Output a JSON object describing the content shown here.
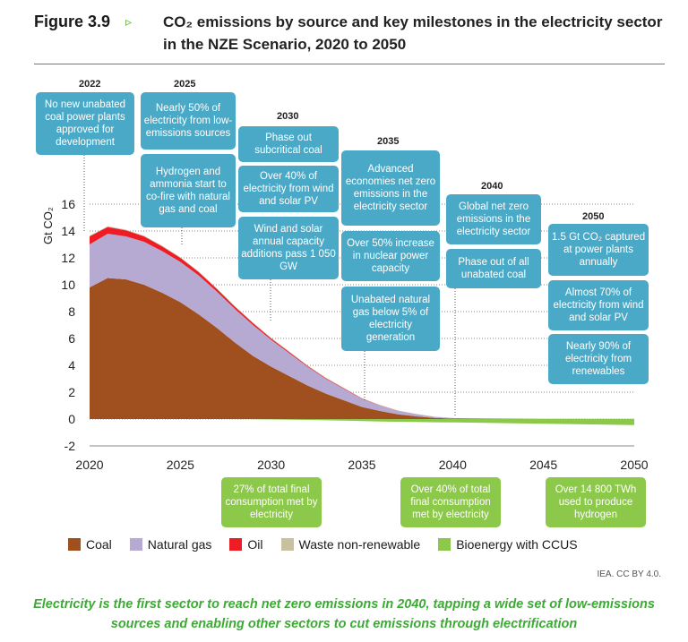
{
  "figure": {
    "label": "Figure 3.9",
    "arrow": "▹",
    "title": "CO₂ emissions by source and key milestones in the electricity sector in the NZE Scenario, 2020 to 2050"
  },
  "credit": "IEA. CC BY 4.0.",
  "caption": "Electricity is the first sector to reach net zero emissions in 2040, tapping a wide set of low-emissions sources and enabling other sectors to cut emissions through electrification",
  "milestones": {
    "y2022": {
      "year": "2022",
      "items": [
        "No new unabated coal power plants approved for development"
      ]
    },
    "y2025": {
      "year": "2025",
      "items": [
        "Nearly 50% of electricity from low-emissions sources",
        "Hydrogen and ammonia start to co-fire with natural gas and coal"
      ]
    },
    "y2030": {
      "year": "2030",
      "items": [
        "Phase out subcritical coal",
        "Over 40% of electricity from wind and solar PV",
        "Wind and solar annual capacity additions pass 1 050 GW"
      ]
    },
    "y2035": {
      "year": "2035",
      "items": [
        "Advanced economies net zero emissions in the electricity sector",
        "Over 50% increase in nuclear power capacity",
        "Unabated natural gas below 5% of electricity generation"
      ]
    },
    "y2040": {
      "year": "2040",
      "items": [
        "Global net zero emissions in the electricity sector",
        "Phase out of all unabated coal"
      ]
    },
    "y2050": {
      "year": "2050",
      "items": [
        "1.5 Gt CO₂ captured at power plants annually",
        "Almost 70% of electricity from wind and solar PV",
        "Nearly 90% of electricity from renewables"
      ]
    }
  },
  "bottom_callouts": [
    "27% of total final consumption met by electricity",
    "Over 40% of total final consumption met by electricity",
    "Over 14 800 TWh used to produce hydrogen"
  ],
  "chart_data": {
    "type": "area",
    "stacked": true,
    "title": "",
    "xlabel": "",
    "ylabel": "Gt CO₂",
    "xlim": [
      2020,
      2050
    ],
    "ylim": [
      -2,
      16
    ],
    "x_ticks": [
      "2020",
      "2025",
      "2030",
      "2035",
      "2040",
      "2045",
      "2050"
    ],
    "y_ticks": [
      "-2",
      "0",
      "2",
      "4",
      "6",
      "8",
      "10",
      "12",
      "14",
      "16"
    ],
    "grid": "dotted horizontal",
    "legend_position": "bottom",
    "x": [
      2020,
      2021,
      2022,
      2023,
      2024,
      2025,
      2026,
      2027,
      2028,
      2029,
      2030,
      2031,
      2032,
      2033,
      2034,
      2035,
      2036,
      2037,
      2038,
      2039,
      2040,
      2045,
      2050
    ],
    "series": [
      {
        "name": "Coal",
        "color": "#a0501e",
        "values": [
          9.8,
          10.5,
          10.4,
          10.0,
          9.4,
          8.7,
          7.8,
          6.8,
          5.7,
          4.7,
          3.9,
          3.2,
          2.5,
          1.9,
          1.4,
          0.9,
          0.6,
          0.35,
          0.2,
          0.08,
          0.03,
          0.0,
          0.0
        ]
      },
      {
        "name": "Natural gas",
        "color": "#b6a9d2",
        "values": [
          3.2,
          3.3,
          3.2,
          3.2,
          3.1,
          3.0,
          2.9,
          2.7,
          2.5,
          2.3,
          2.0,
          1.7,
          1.4,
          1.1,
          0.85,
          0.6,
          0.4,
          0.25,
          0.15,
          0.08,
          0.04,
          0.02,
          0.01
        ]
      },
      {
        "name": "Oil",
        "color": "#ee1c25",
        "values": [
          0.6,
          0.5,
          0.45,
          0.4,
          0.35,
          0.3,
          0.25,
          0.2,
          0.17,
          0.14,
          0.1,
          0.08,
          0.06,
          0.05,
          0.04,
          0.03,
          0.02,
          0.01,
          0.01,
          0.0,
          0.0,
          0.0,
          0.0
        ]
      },
      {
        "name": "Waste non-renewable",
        "color": "#c9bfa1",
        "values": [
          0.05,
          0.05,
          0.05,
          0.05,
          0.05,
          0.05,
          0.05,
          0.05,
          0.05,
          0.05,
          0.05,
          0.05,
          0.04,
          0.04,
          0.04,
          0.03,
          0.03,
          0.02,
          0.02,
          0.02,
          0.01,
          0.01,
          0.01
        ]
      },
      {
        "name": "Bioenergy with CCUS",
        "color": "#8cc84a",
        "values": [
          0,
          0,
          0,
          0,
          0,
          0,
          0,
          0,
          -0.01,
          -0.02,
          -0.03,
          -0.05,
          -0.07,
          -0.09,
          -0.12,
          -0.15,
          -0.18,
          -0.2,
          -0.22,
          -0.24,
          -0.25,
          -0.35,
          -0.45
        ]
      }
    ]
  }
}
